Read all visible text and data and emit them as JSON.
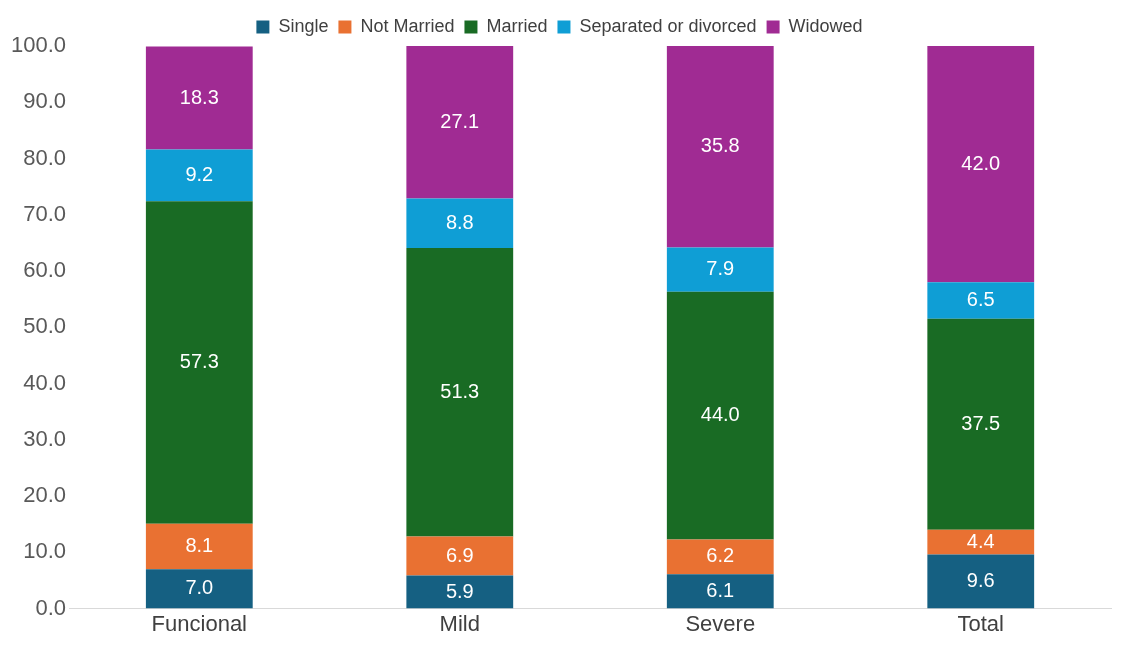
{
  "chart_data": {
    "type": "bar",
    "stacked": true,
    "categories": [
      "Funcional",
      "Mild",
      "Severe",
      "Total"
    ],
    "series": [
      {
        "name": "Single",
        "color": "#156082",
        "values": [
          7.0,
          5.9,
          6.1,
          9.6
        ],
        "value_labels": [
          "7.0",
          "5.9",
          "6.1",
          "9.6"
        ]
      },
      {
        "name": "Not Married",
        "color": "#e97132",
        "values": [
          8.1,
          6.9,
          6.2,
          4.4
        ],
        "value_labels": [
          "8.1",
          "6.9",
          "6.2",
          "4.4"
        ]
      },
      {
        "name": "Married",
        "color": "#196b24",
        "values": [
          57.3,
          51.3,
          44.0,
          37.5
        ],
        "value_labels": [
          "57.3",
          "51.3",
          "44.0",
          "37.5"
        ]
      },
      {
        "name": "Separated or divorced",
        "color": "#0f9ed5",
        "values": [
          9.2,
          8.8,
          7.9,
          6.5
        ],
        "value_labels": [
          "9.2",
          "8.8",
          "7.9",
          "6.5"
        ]
      },
      {
        "name": "Widowed",
        "color": "#a02b93",
        "values": [
          18.3,
          27.1,
          35.8,
          42.0
        ],
        "value_labels": [
          "18.3",
          "27.1",
          "35.8",
          "42.0"
        ]
      }
    ],
    "ylim": [
      0,
      100
    ],
    "yticks": [
      {
        "value": 0,
        "label": "0.0"
      },
      {
        "value": 10,
        "label": "10.0"
      },
      {
        "value": 20,
        "label": "20.0"
      },
      {
        "value": 30,
        "label": "30.0"
      },
      {
        "value": 40,
        "label": "40.0"
      },
      {
        "value": 50,
        "label": "50.0"
      },
      {
        "value": 60,
        "label": "60.0"
      },
      {
        "value": 70,
        "label": "70.0"
      },
      {
        "value": 80,
        "label": "80.0"
      },
      {
        "value": 90,
        "label": "90.0"
      },
      {
        "value": 100,
        "label": "100.0"
      }
    ],
    "grid": false,
    "legend": "top"
  }
}
